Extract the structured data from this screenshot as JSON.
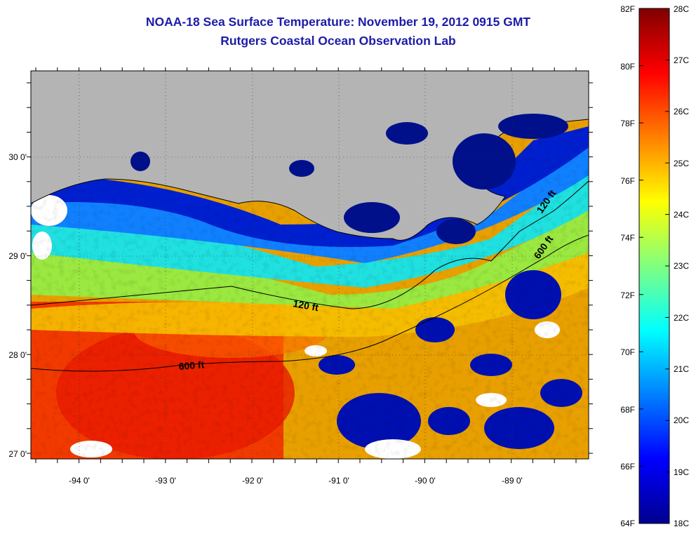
{
  "title": {
    "line1": "NOAA-18 Sea Surface Temperature:  November 19, 2012 0915 GMT",
    "line2": "Rutgers Coastal Ocean Observation Lab"
  },
  "map": {
    "land_color": "#b4b4b4",
    "cloud_color": "#ffffff",
    "x_ticks": [
      {
        "value": -94,
        "label": "-94 0'"
      },
      {
        "value": -93,
        "label": "-93 0'"
      },
      {
        "value": -92,
        "label": "-92 0'"
      },
      {
        "value": -91,
        "label": "-91 0'"
      },
      {
        "value": -90,
        "label": "-90 0'"
      },
      {
        "value": -89,
        "label": "-89 0'"
      }
    ],
    "y_ticks": [
      {
        "value": 30,
        "label": "30 0'"
      },
      {
        "value": 29,
        "label": "29 0'"
      },
      {
        "value": 28,
        "label": "28 0'"
      },
      {
        "value": 27,
        "label": "27 0'"
      }
    ],
    "contours": [
      {
        "label": "120 ft"
      },
      {
        "label": "600 ft"
      }
    ]
  },
  "colorbar": {
    "fahrenheit": [
      "82F",
      "80F",
      "78F",
      "76F",
      "74F",
      "72F",
      "70F",
      "68F",
      "66F",
      "64F"
    ],
    "celsius": [
      "28C",
      "27C",
      "26C",
      "25C",
      "24C",
      "23C",
      "22C",
      "21C",
      "20C",
      "19C",
      "18C"
    ],
    "stops": [
      "#00008f",
      "#0000ff",
      "#0080ff",
      "#00ffff",
      "#80ff80",
      "#ffff00",
      "#ff8000",
      "#ff0000",
      "#800000"
    ]
  }
}
